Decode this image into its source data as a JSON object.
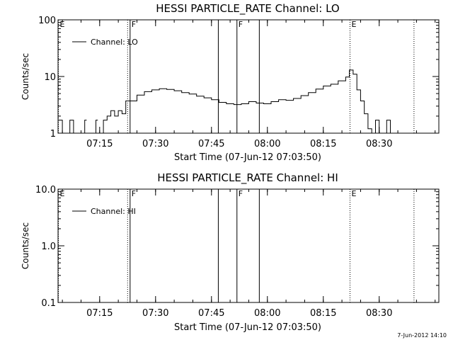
{
  "footer_timestamp": "7-Jun-2012 14:10",
  "chart_data": [
    {
      "type": "line",
      "title": "HESSI PARTICLE_RATE Channel: LO",
      "xlabel": "Start Time (07-Jun-12 07:03:50)",
      "ylabel": "Counts/sec",
      "y_scale": "log",
      "ylim": [
        1,
        100
      ],
      "y_ticks": [
        {
          "v": 1,
          "label": "1"
        },
        {
          "v": 10,
          "label": "10"
        },
        {
          "v": 100,
          "label": "100"
        }
      ],
      "xlim": [
        "07:03:50",
        "08:46:00"
      ],
      "x_ticks": [
        "07:15",
        "07:30",
        "07:45",
        "08:00",
        "08:15",
        "08:30"
      ],
      "legend": "top-left",
      "series": [
        {
          "name": "Channel: LO",
          "x": [
            "07:03:50",
            "07:05",
            "07:06",
            "07:07",
            "07:08",
            "07:09",
            "07:10",
            "07:11",
            "07:12",
            "07:13",
            "07:14",
            "07:15",
            "07:16",
            "07:17",
            "07:18",
            "07:19",
            "07:20",
            "07:21",
            "07:22",
            "07:23",
            "07:25",
            "07:27",
            "07:29",
            "07:31",
            "07:33",
            "07:35",
            "07:37",
            "07:39",
            "07:41",
            "07:43",
            "07:45",
            "07:47",
            "07:49",
            "07:51",
            "07:53",
            "07:55",
            "07:57",
            "07:59",
            "08:01",
            "08:03",
            "08:05",
            "08:07",
            "08:09",
            "08:11",
            "08:13",
            "08:15",
            "08:17",
            "08:19",
            "08:21",
            "08:22",
            "08:23",
            "08:24",
            "08:25",
            "08:26",
            "08:27",
            "08:28",
            "08:29",
            "08:30",
            "08:31",
            "08:32",
            "08:33"
          ],
          "values": [
            1.7,
            1,
            1,
            1.7,
            1,
            1,
            1,
            1.7,
            1,
            1,
            1.7,
            1,
            1.7,
            2,
            2.5,
            2,
            2.5,
            2.2,
            3.7,
            3.7,
            4.7,
            5.4,
            5.8,
            6.1,
            5.9,
            5.6,
            5.2,
            4.9,
            4.5,
            4.2,
            3.9,
            3.5,
            3.3,
            3.2,
            3.3,
            3.6,
            3.4,
            3.3,
            3.6,
            3.9,
            3.8,
            4.1,
            4.6,
            5.2,
            6.0,
            6.8,
            7.3,
            8.4,
            9.8,
            13,
            11,
            5.8,
            3.7,
            2.2,
            1.2,
            1,
            1.7,
            1,
            1,
            1.7,
            1
          ],
          "gaps_after": [
            "07:05",
            "07:08",
            "07:11",
            "07:14"
          ]
        }
      ],
      "markers": [
        {
          "label": "E",
          "time": "07:03:50",
          "style": "dotted"
        },
        {
          "label": "",
          "time": "07:22:30",
          "style": "dotted"
        },
        {
          "label": "F",
          "time": "07:23:10",
          "style": "solid"
        },
        {
          "label": "",
          "time": "07:46:50",
          "style": "solid"
        },
        {
          "label": "F",
          "time": "07:51:50",
          "style": "solid"
        },
        {
          "label": "",
          "time": "07:57:50",
          "style": "solid"
        },
        {
          "label": "E",
          "time": "08:22:10",
          "style": "dotted"
        },
        {
          "label": "",
          "time": "08:39:20",
          "style": "dotted"
        }
      ]
    },
    {
      "type": "line",
      "title": "HESSI PARTICLE_RATE Channel: HI",
      "xlabel": "Start Time (07-Jun-12 07:03:50)",
      "ylabel": "Counts/sec",
      "y_scale": "log",
      "ylim": [
        0.1,
        10
      ],
      "y_ticks": [
        {
          "v": 0.1,
          "label": "0.1"
        },
        {
          "v": 1,
          "label": "1.0"
        },
        {
          "v": 10,
          "label": "10.0"
        }
      ],
      "xlim": [
        "07:03:50",
        "08:46:00"
      ],
      "x_ticks": [
        "07:15",
        "07:30",
        "07:45",
        "08:00",
        "08:15",
        "08:30"
      ],
      "legend": "top-left",
      "series": [
        {
          "name": "Channel: HI",
          "x": [],
          "values": []
        }
      ],
      "markers": [
        {
          "label": "E",
          "time": "07:03:50",
          "style": "dotted"
        },
        {
          "label": "",
          "time": "07:22:30",
          "style": "dotted"
        },
        {
          "label": "F",
          "time": "07:23:10",
          "style": "solid"
        },
        {
          "label": "",
          "time": "07:46:50",
          "style": "solid"
        },
        {
          "label": "F",
          "time": "07:51:50",
          "style": "solid"
        },
        {
          "label": "",
          "time": "07:57:50",
          "style": "solid"
        },
        {
          "label": "E",
          "time": "08:22:10",
          "style": "dotted"
        },
        {
          "label": "",
          "time": "08:39:20",
          "style": "dotted"
        }
      ]
    }
  ]
}
